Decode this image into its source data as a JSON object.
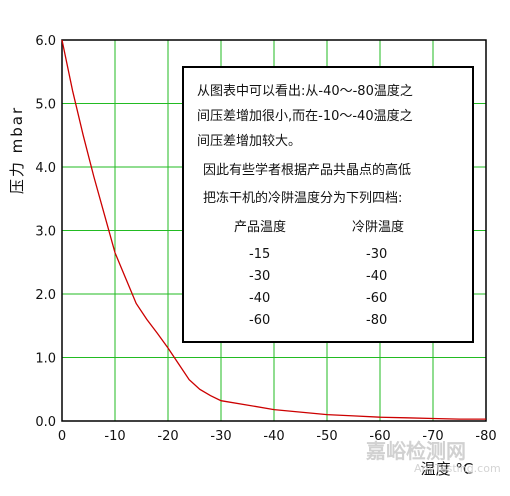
{
  "chart_data": {
    "type": "line",
    "title": "",
    "xlabel": "温度 °C",
    "ylabel": "压力 mbar",
    "xlim": [
      0,
      -80
    ],
    "ylim": [
      0.0,
      6.0
    ],
    "grid": true,
    "x_ticks": [
      "0",
      "-10",
      "-20",
      "-30",
      "-40",
      "-50",
      "-60",
      "-70",
      "-80"
    ],
    "y_ticks": [
      "0.0",
      "1.0",
      "2.0",
      "3.0",
      "4.0",
      "5.0",
      "6.0"
    ],
    "series": [
      {
        "color": "#cc0000",
        "x": [
          0,
          -2,
          -4,
          -6,
          -8,
          -10,
          -12,
          -14,
          -16,
          -18,
          -20,
          -22,
          -24,
          -26,
          -28,
          -30,
          -35,
          -40,
          -45,
          -50,
          -55,
          -60,
          -65,
          -70,
          -75,
          -80
        ],
        "y": [
          6.0,
          5.2,
          4.5,
          3.85,
          3.25,
          2.65,
          2.25,
          1.85,
          1.6,
          1.38,
          1.15,
          0.9,
          0.65,
          0.5,
          0.4,
          0.32,
          0.25,
          0.18,
          0.14,
          0.1,
          0.08,
          0.06,
          0.05,
          0.04,
          0.03,
          0.03
        ]
      }
    ],
    "annotation": {
      "lines": [
        "从图表中可以看出:从-40～-80温度之",
        "间压差增加很小,而在-10～-40温度之",
        "间压差增加较大。",
        "因此有些学者根据产品共晶点的高低",
        "把冻干机的冷阱温度分为下列四档:"
      ],
      "table": {
        "headers": [
          "产品温度",
          "冷阱温度"
        ],
        "rows": [
          [
            "-15",
            "-30"
          ],
          [
            "-30",
            "-40"
          ],
          [
            "-40",
            "-60"
          ],
          [
            "-60",
            "-80"
          ]
        ]
      }
    }
  },
  "watermark": {
    "text": "嘉峪检测网",
    "sub": "AnyTesting.com"
  }
}
